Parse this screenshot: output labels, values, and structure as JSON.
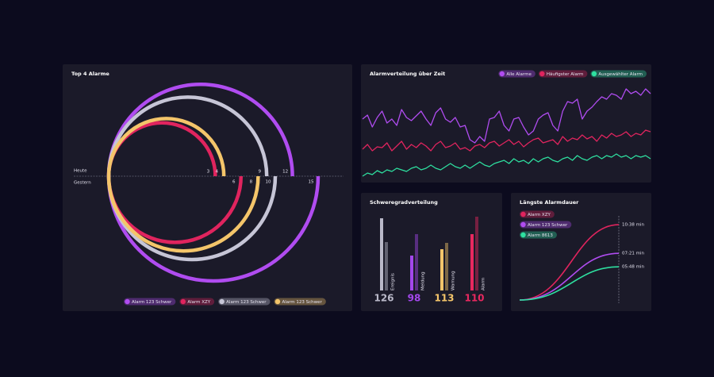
{
  "chart_data": [
    {
      "type": "arc",
      "title": "Top 4 Alarme",
      "categories": [
        "Heute",
        "Gestern"
      ],
      "series": [
        {
          "name": "Alarm 123 Schwer",
          "color": "#b04cf0",
          "values": [
            12,
            15
          ]
        },
        {
          "name": "Alarm XZY",
          "color": "#e0245e",
          "values": [
            3,
            6
          ]
        },
        {
          "name": "Alarm 123 Schwer",
          "color": "#c6c5d6",
          "values": [
            9,
            10
          ]
        },
        {
          "name": "Alarm 123 Schwer",
          "color": "#f4c56a",
          "values": [
            4,
            8
          ]
        }
      ]
    },
    {
      "type": "line",
      "title": "Alarmverteilung über Zeit",
      "series": [
        {
          "name": "Alle Alarme",
          "color": "#b04cf0",
          "values": [
            78,
            83,
            68,
            80,
            88,
            73,
            78,
            70,
            90,
            80,
            76,
            82,
            88,
            78,
            70,
            86,
            92,
            78,
            74,
            80,
            68,
            70,
            52,
            48,
            56,
            50,
            78,
            80,
            88,
            70,
            63,
            78,
            80,
            68,
            58,
            63,
            78,
            83,
            86,
            70,
            63,
            88,
            100,
            98,
            103,
            78,
            88,
            93,
            100,
            106,
            103,
            110,
            108,
            103,
            116,
            110,
            113,
            108,
            116,
            110
          ]
        },
        {
          "name": "Häufigster Alarm",
          "color": "#e0245e",
          "values": [
            40,
            46,
            38,
            43,
            42,
            48,
            38,
            44,
            50,
            40,
            46,
            42,
            48,
            44,
            38,
            46,
            50,
            42,
            44,
            48,
            40,
            42,
            38,
            44,
            46,
            42,
            48,
            50,
            44,
            48,
            52,
            46,
            50,
            43,
            48,
            52,
            54,
            48,
            50,
            52,
            46,
            56,
            50,
            54,
            52,
            58,
            53,
            56,
            50,
            58,
            54,
            60,
            56,
            58,
            62,
            56,
            60,
            58,
            64,
            62
          ]
        },
        {
          "name": "Ausgewählter Alarm",
          "color": "#2ee0a0",
          "values": [
            6,
            10,
            8,
            13,
            10,
            14,
            12,
            16,
            14,
            12,
            16,
            18,
            14,
            16,
            20,
            16,
            14,
            18,
            22,
            18,
            16,
            20,
            16,
            20,
            24,
            20,
            18,
            22,
            24,
            26,
            22,
            28,
            24,
            26,
            22,
            28,
            24,
            28,
            30,
            26,
            24,
            28,
            30,
            26,
            32,
            28,
            26,
            30,
            32,
            28,
            32,
            30,
            34,
            30,
            32,
            28,
            32,
            30,
            32,
            28
          ]
        }
      ]
    },
    {
      "type": "bar",
      "title": "Schweregradverteilung",
      "categories": [
        "Ereignis",
        "Meldung",
        "Warnung",
        "Alarm"
      ],
      "values": [
        126,
        98,
        113,
        110
      ],
      "colors": [
        "#b9b8c8",
        "#a347ec",
        "#f4c56a",
        "#e8285f"
      ],
      "series": [
        {
          "values": [
            91,
            44,
            52,
            71
          ]
        },
        {
          "values": [
            61,
            71,
            60,
            93
          ]
        }
      ]
    },
    {
      "type": "curve",
      "title": "Längste Alarmdauer",
      "series": [
        {
          "name": "Alarm XZY",
          "color": "#e0245e",
          "values": [
            10.63
          ],
          "value_labels": [
            "10:38 min"
          ]
        },
        {
          "name": "Alarm 123 Schwer",
          "color": "#b04cf0",
          "values": [
            7.35
          ],
          "value_labels": [
            "07:21 min"
          ]
        },
        {
          "name": "Alarm 8613",
          "color": "#2ee0a0",
          "values": [
            5.8
          ],
          "value_labels": [
            "05:48 min"
          ]
        }
      ]
    }
  ]
}
